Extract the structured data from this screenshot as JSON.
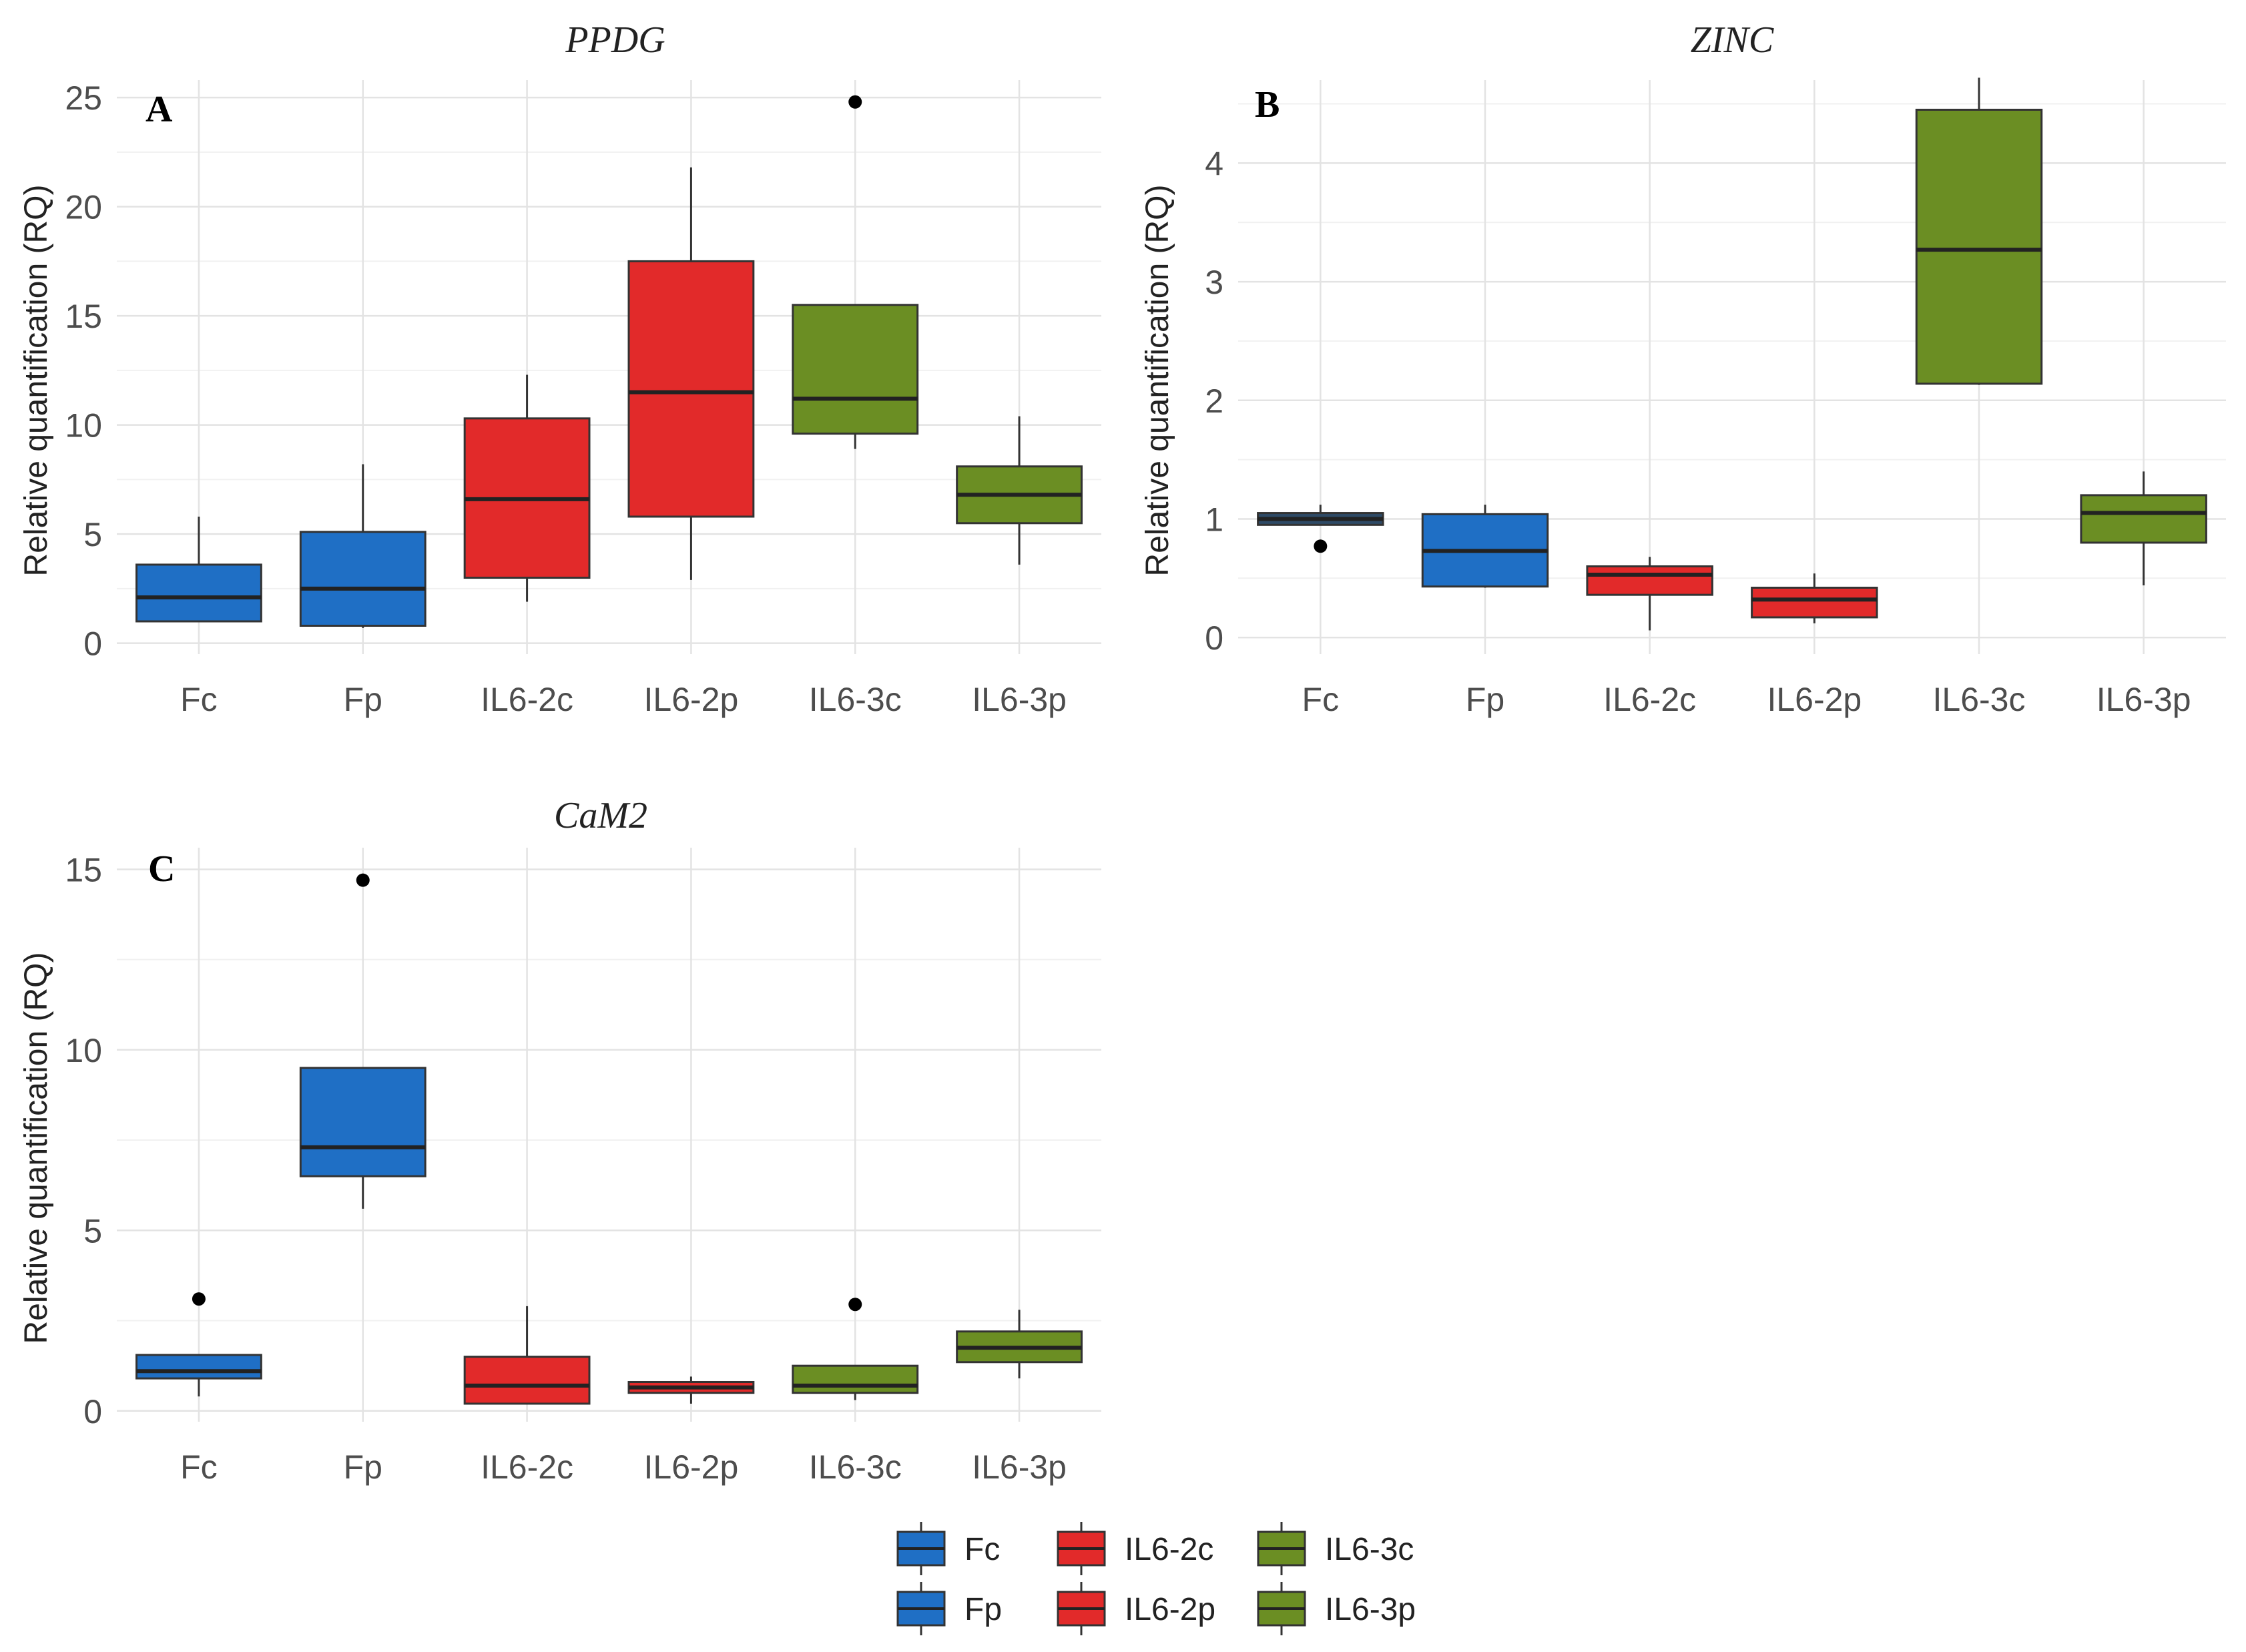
{
  "groups": [
    "Fc",
    "Fp",
    "IL6-2c",
    "IL6-2p",
    "IL6-3c",
    "IL6-3p"
  ],
  "colors": {
    "Fc": "#1f6fc5",
    "Fp": "#1f6fc5",
    "IL6-2c": "#e22a2a",
    "IL6-2p": "#e22a2a",
    "IL6-3c": "#6b8e23",
    "IL6-3p": "#6b8e23",
    "outline": "#333333",
    "median": "#222222"
  },
  "chart_data": [
    {
      "type": "box",
      "panel": "A",
      "title": "PPDG",
      "xlabel": "",
      "ylabel": "Relative quantification (RQ)",
      "ylim": [
        -0.5,
        25.8
      ],
      "yticks": [
        0,
        5,
        10,
        15,
        20,
        25
      ],
      "categories": [
        "Fc",
        "Fp",
        "IL6-2c",
        "IL6-2p",
        "IL6-3c",
        "IL6-3p"
      ],
      "boxes": [
        {
          "group": "Fc",
          "whisker_low": 1.0,
          "q1": 1.0,
          "median": 2.1,
          "q3": 3.6,
          "whisker_high": 5.8,
          "outliers": []
        },
        {
          "group": "Fp",
          "whisker_low": 0.7,
          "q1": 0.8,
          "median": 2.5,
          "q3": 5.1,
          "whisker_high": 8.2,
          "outliers": []
        },
        {
          "group": "IL6-2c",
          "whisker_low": 1.9,
          "q1": 3.0,
          "median": 6.6,
          "q3": 10.3,
          "whisker_high": 12.3,
          "outliers": []
        },
        {
          "group": "IL6-2p",
          "whisker_low": 2.9,
          "q1": 5.8,
          "median": 11.5,
          "q3": 17.5,
          "whisker_high": 21.8,
          "outliers": []
        },
        {
          "group": "IL6-3c",
          "whisker_low": 8.9,
          "q1": 9.6,
          "median": 11.2,
          "q3": 15.5,
          "whisker_high": 15.5,
          "outliers": [
            24.8
          ]
        },
        {
          "group": "IL6-3p",
          "whisker_low": 3.6,
          "q1": 5.5,
          "median": 6.8,
          "q3": 8.1,
          "whisker_high": 10.4,
          "outliers": []
        }
      ]
    },
    {
      "type": "box",
      "panel": "B",
      "title": "ZINC",
      "xlabel": "",
      "ylabel": "Relative quantification (RQ)",
      "ylim": [
        -0.14,
        4.7
      ],
      "yticks": [
        0,
        1,
        2,
        3,
        4
      ],
      "categories": [
        "Fc",
        "Fp",
        "IL6-2c",
        "IL6-2p",
        "IL6-3c",
        "IL6-3p"
      ],
      "boxes": [
        {
          "group": "Fc",
          "whisker_low": 0.95,
          "q1": 0.95,
          "median": 1.0,
          "q3": 1.05,
          "whisker_high": 1.12,
          "outliers": [
            0.77
          ],
          "box_color": "#2e4a66"
        },
        {
          "group": "Fp",
          "whisker_low": 0.42,
          "q1": 0.43,
          "median": 0.73,
          "q3": 1.04,
          "whisker_high": 1.12,
          "outliers": []
        },
        {
          "group": "IL6-2c",
          "whisker_low": 0.06,
          "q1": 0.36,
          "median": 0.53,
          "q3": 0.6,
          "whisker_high": 0.68,
          "outliers": []
        },
        {
          "group": "IL6-2p",
          "whisker_low": 0.12,
          "q1": 0.17,
          "median": 0.32,
          "q3": 0.42,
          "whisker_high": 0.54,
          "outliers": []
        },
        {
          "group": "IL6-3c",
          "whisker_low": 2.13,
          "q1": 2.14,
          "median": 3.27,
          "q3": 4.45,
          "whisker_high": 4.72,
          "outliers": []
        },
        {
          "group": "IL6-3p",
          "whisker_low": 0.44,
          "q1": 0.8,
          "median": 1.05,
          "q3": 1.2,
          "whisker_high": 1.4,
          "outliers": []
        }
      ]
    },
    {
      "type": "box",
      "panel": "C",
      "title": "CaM2",
      "xlabel": "",
      "ylabel": "Relative quantification (RQ)",
      "ylim": [
        -0.3,
        15.6
      ],
      "yticks": [
        0,
        5,
        10,
        15
      ],
      "categories": [
        "Fc",
        "Fp",
        "IL6-2c",
        "IL6-2p",
        "IL6-3c",
        "IL6-3p"
      ],
      "boxes": [
        {
          "group": "Fc",
          "whisker_low": 0.4,
          "q1": 0.9,
          "median": 1.1,
          "q3": 1.55,
          "whisker_high": 1.55,
          "outliers": [
            3.1
          ]
        },
        {
          "group": "Fp",
          "whisker_low": 5.6,
          "q1": 6.5,
          "median": 7.3,
          "q3": 9.5,
          "whisker_high": 9.5,
          "outliers": [
            14.7
          ]
        },
        {
          "group": "IL6-2c",
          "whisker_low": 0.2,
          "q1": 0.2,
          "median": 0.7,
          "q3": 1.5,
          "whisker_high": 2.9,
          "outliers": []
        },
        {
          "group": "IL6-2p",
          "whisker_low": 0.2,
          "q1": 0.5,
          "median": 0.65,
          "q3": 0.8,
          "whisker_high": 0.95,
          "outliers": []
        },
        {
          "group": "IL6-3c",
          "whisker_low": 0.3,
          "q1": 0.5,
          "median": 0.7,
          "q3": 1.25,
          "whisker_high": 1.25,
          "outliers": [
            2.95
          ]
        },
        {
          "group": "IL6-3p",
          "whisker_low": 0.9,
          "q1": 1.35,
          "median": 1.75,
          "q3": 2.2,
          "whisker_high": 2.8,
          "outliers": []
        }
      ]
    }
  ],
  "legend": {
    "position": "bottom",
    "items": [
      "Fc",
      "Fp",
      "IL6-2c",
      "IL6-2p",
      "IL6-3c",
      "IL6-3p"
    ]
  }
}
